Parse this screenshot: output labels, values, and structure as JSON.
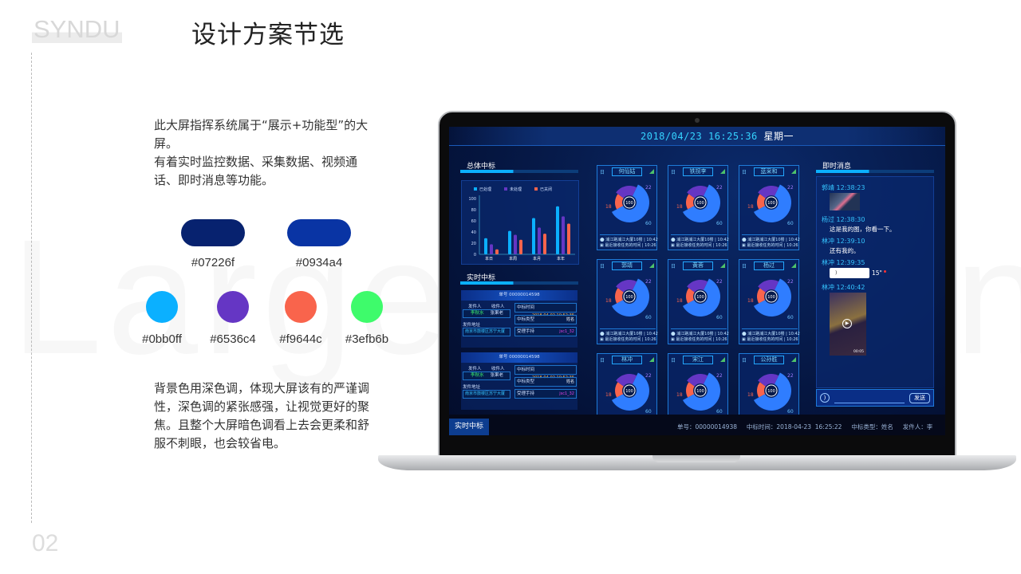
{
  "slide": {
    "logo": "SYNDU",
    "title": "设计方案节选",
    "page_number": "02",
    "watermark": "Large Screen",
    "description_1": "此大屏指挥系统属于“展示+功能型”的大屏。",
    "description_2": "有着实时监控数据、采集数据、视频通话、即时消息等功能。",
    "description_3": "背景色用深色调，体现大屏该有的严谨调性，深色调的紧张感强，让视觉更好的聚焦。且整个大屏暗色调看上去会更柔和舒服不刺眼，也会较省电。",
    "primary_colors": [
      {
        "hex": "#07226f",
        "label": "#07226f"
      },
      {
        "hex": "#0934a4",
        "label": "#0934a4"
      }
    ],
    "accent_colors": [
      {
        "hex": "#0bb0ff",
        "label": "#0bb0ff"
      },
      {
        "hex": "#6536c4",
        "label": "#6536c4"
      },
      {
        "hex": "#f9644c",
        "label": "#f9644c"
      },
      {
        "hex": "#3efb6b",
        "label": "#3efb6b"
      }
    ]
  },
  "dashboard": {
    "date": "2018/04/23 16:25:36",
    "weekday": "星期一",
    "overall_panel": {
      "title": "总体中标"
    },
    "realtime_panel": {
      "title": "实时中标"
    },
    "chart_data": {
      "type": "bar",
      "categories": [
        "本日",
        "本周",
        "本月",
        "本年"
      ],
      "series": [
        {
          "name": "已处理",
          "values": [
            29,
            42,
            65,
            86
          ],
          "color": "#0bb0ff"
        },
        {
          "name": "未处理",
          "values": [
            18,
            35,
            48,
            68
          ],
          "color": "#6536c4"
        },
        {
          "name": "已关闭",
          "values": [
            9,
            26,
            37,
            55
          ],
          "color": "#f9644c"
        }
      ],
      "yticks": [
        0,
        20,
        40,
        60,
        80,
        100
      ],
      "ylim": [
        0,
        100
      ],
      "legend": "top"
    },
    "orders": [
      {
        "order_label": "单号",
        "order_no": "00000014598",
        "sender_label": "发件人",
        "receiver_label": "收件人",
        "sender": "李秋水",
        "receiver": "张果老",
        "address_label": "发件地址",
        "address": "南京市鼓楼区苏宁大厦",
        "time_label": "中标时间",
        "time": "2018-04-02 10:52:35",
        "type_label": "中标类型",
        "type": "姓名",
        "handset_label": "受理手持",
        "handset": "jsc1_32"
      },
      {
        "order_label": "单号",
        "order_no": "00000014598",
        "sender_label": "发件人",
        "receiver_label": "收件人",
        "sender": "李秋水",
        "receiver": "张果老",
        "address_label": "发件地址",
        "address": "南京市鼓楼区苏宁大厦",
        "time_label": "中标时间",
        "time": "2018-04-02 10:52:35",
        "type_label": "中标类型",
        "type": "姓名",
        "handset_label": "受理手持",
        "handset": "jsc1_32"
      }
    ],
    "staff_cards": [
      {
        "name": "何仙姑",
        "day": "日",
        "total": "100",
        "segments": [
          60,
          18,
          22
        ],
        "location": "浦江路浦江大厦10楼",
        "loc_time": "10:42",
        "task_label": "最近接收任务的时间",
        "task_time": "10:26"
      },
      {
        "name": "铁拐李",
        "day": "日",
        "total": "100",
        "segments": [
          60,
          18,
          22
        ],
        "location": "浦江路浦江大厦10楼",
        "loc_time": "10:42",
        "task_label": "最近接收任务的时间",
        "task_time": "10:26"
      },
      {
        "name": "蓝采和",
        "day": "日",
        "total": "100",
        "segments": [
          60,
          18,
          22
        ],
        "location": "浦江路浦江大厦10楼",
        "loc_time": "10:42",
        "task_label": "最近接收任务的时间",
        "task_time": "10:26"
      },
      {
        "name": "郭靖",
        "day": "日",
        "total": "100",
        "segments": [
          60,
          18,
          22
        ],
        "location": "浦江路浦江大厦10楼",
        "loc_time": "10:42",
        "task_label": "最近接收任务的时间",
        "task_time": "10:26"
      },
      {
        "name": "黄蓉",
        "day": "日",
        "total": "100",
        "segments": [
          60,
          18,
          22
        ],
        "location": "浦江路浦江大厦10楼",
        "loc_time": "10:42",
        "task_label": "最近接收任务的时间",
        "task_time": "10:26"
      },
      {
        "name": "杨过",
        "day": "日",
        "total": "100",
        "segments": [
          60,
          18,
          22
        ],
        "location": "浦江路浦江大厦10楼",
        "loc_time": "10:42",
        "task_label": "最近接收任务的时间",
        "task_time": "10:26"
      },
      {
        "name": "林冲",
        "day": "日",
        "total": "100",
        "segments": [
          60,
          18,
          22
        ]
      },
      {
        "name": "宋江",
        "day": "日",
        "total": "100",
        "segments": [
          60,
          18,
          22
        ]
      },
      {
        "name": "公孙胜",
        "day": "日",
        "total": "100",
        "segments": [
          60,
          18,
          22
        ]
      }
    ],
    "segment_colors": [
      "#2f7dff",
      "#f9644c",
      "#6536c4"
    ],
    "messages_panel": {
      "title": "即时消息",
      "messages": [
        {
          "name": "郭靖",
          "time": "12:38:23",
          "kind": "image"
        },
        {
          "name": "杨过",
          "time": "12:38:30",
          "kind": "text",
          "text": "这是我的图，你看一下。"
        },
        {
          "name": "林冲",
          "time": "12:39:10",
          "kind": "text",
          "text": "还有我的。"
        },
        {
          "name": "林冲",
          "time": "12:39:35",
          "kind": "voice",
          "duration": "15\""
        },
        {
          "name": "林冲",
          "time": "12:40:42",
          "kind": "video",
          "video_duration": "00:05"
        }
      ],
      "send_label": "发送"
    },
    "footer": {
      "tab": "实时中标",
      "ticker": "单号：00000014938     中标时间：2018-04-23  16:25:22     中标类型：姓名     发件人：李"
    }
  }
}
